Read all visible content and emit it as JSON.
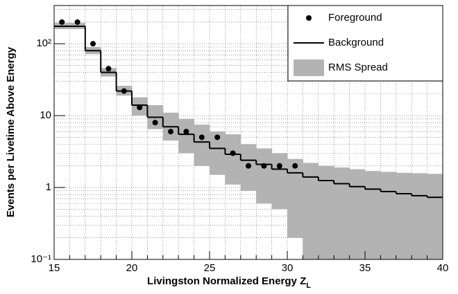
{
  "chart_data": {
    "type": "histogram",
    "x_label": "Livingston Normalized Energy Z",
    "x_label_sub": "L",
    "y_label": "Events per Livetime Above Energy",
    "xlim": [
      15,
      40
    ],
    "xticks": [
      15,
      20,
      25,
      30,
      35,
      40
    ],
    "ylim": [
      0.1,
      340
    ],
    "log_y": true,
    "grid": true,
    "yticks": [
      {
        "value": 0.1,
        "label": "10⁻¹"
      },
      1,
      10,
      {
        "value": 100,
        "label": "10²"
      }
    ],
    "bins": [
      15,
      16,
      17,
      18,
      19,
      20,
      21,
      22,
      23,
      24,
      25,
      26,
      27,
      28,
      29,
      30,
      31,
      32,
      33,
      34,
      35,
      36,
      37,
      38,
      39,
      40
    ],
    "series": [
      {
        "name": "Background",
        "color": "#000000",
        "values": [
          175,
          175,
          80,
          40,
          22,
          14,
          9.5,
          7,
          5.5,
          4.3,
          3.5,
          2.9,
          2.4,
          2.1,
          1.8,
          1.6,
          1.4,
          1.25,
          1.13,
          1.03,
          0.95,
          0.88,
          0.82,
          0.77,
          0.73
        ]
      },
      {
        "name": "RMS Spread",
        "color": "#b3b3b3",
        "low": [
          160,
          160,
          72,
          35,
          19,
          10,
          6.5,
          4.5,
          3,
          2,
          1.5,
          1.1,
          0.9,
          0.6,
          0.5,
          0.2,
          0.05,
          0.05,
          0.05,
          0.05,
          0.05,
          0.05,
          0.05,
          0.05,
          0.05
        ],
        "high": [
          195,
          195,
          90,
          46,
          26,
          18,
          14,
          11,
          9,
          7.5,
          6,
          5.5,
          4,
          3.5,
          3,
          2.5,
          2.2,
          2,
          1.9,
          1.8,
          1.7,
          1.65,
          1.6,
          1.58,
          1.55
        ]
      },
      {
        "name": "Foreground",
        "color": "#000000",
        "x": [
          15.5,
          16.5,
          17.5,
          18.5,
          19.5,
          20.5,
          21.5,
          22.5,
          23.5,
          24.5,
          25.5,
          26.5,
          27.5,
          28.5,
          29.5,
          30.5
        ],
        "values": [
          200,
          200,
          100,
          45,
          22,
          13,
          8,
          6,
          6,
          5,
          5,
          3,
          2,
          2,
          2,
          2
        ]
      }
    ],
    "legend": "upper right"
  }
}
